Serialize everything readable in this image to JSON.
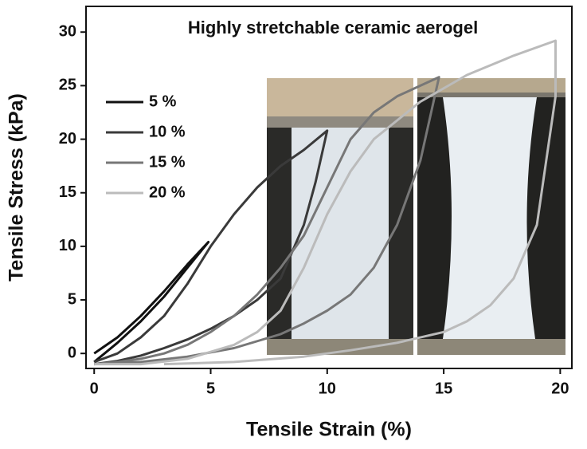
{
  "chart_data": {
    "type": "line",
    "title": "Highly stretchable ceramic aerogel",
    "x_label": "Tensile Strain (%)",
    "y_label": "Tensile Stress (kPa)",
    "xlim": [
      -0.35,
      20.5
    ],
    "ylim": [
      -1.4,
      32.4
    ],
    "xticks": [
      0,
      5,
      10,
      15,
      20
    ],
    "yticks": [
      0,
      5,
      10,
      15,
      20,
      25,
      30
    ],
    "grid": false,
    "legend": "upper left",
    "series": [
      {
        "name": "5 %",
        "color": "#111111",
        "x": [
          0,
          1,
          2,
          3,
          4,
          4.9,
          4,
          3,
          2,
          1,
          0
        ],
        "values": [
          0,
          1.5,
          3.5,
          5.8,
          8.3,
          10.4,
          8,
          5.3,
          3,
          1,
          -0.8
        ]
      },
      {
        "name": "10 %",
        "color": "#3a3a3a",
        "x": [
          0,
          1,
          2,
          3,
          4,
          5,
          6,
          7,
          8,
          9,
          10,
          9.5,
          9,
          8,
          7,
          6,
          5,
          4,
          3,
          2,
          1,
          0
        ],
        "values": [
          -0.8,
          0,
          1.5,
          3.5,
          6.5,
          10,
          13,
          15.5,
          17.5,
          19,
          20.8,
          16,
          12,
          7,
          5,
          3.5,
          2.3,
          1.3,
          0.5,
          -0.2,
          -0.7,
          -1
        ]
      },
      {
        "name": "15 %",
        "color": "#777777",
        "x": [
          0,
          1,
          2,
          3,
          4,
          5,
          6,
          7,
          8,
          9,
          10,
          11,
          12,
          13,
          14,
          14.8,
          14,
          13,
          12,
          11,
          10,
          9,
          8,
          6,
          4,
          2,
          0
        ],
        "values": [
          -1,
          -0.8,
          -0.5,
          0,
          0.8,
          2,
          3.5,
          5.5,
          8,
          11,
          15.5,
          20,
          22.5,
          24,
          25,
          25.8,
          18,
          12,
          8,
          5.5,
          4,
          2.8,
          1.8,
          0.5,
          -0.3,
          -0.8,
          -1
        ]
      },
      {
        "name": "20 %",
        "color": "#bbbbbb",
        "x": [
          0,
          2,
          4,
          6,
          7,
          8,
          9,
          10,
          11,
          12,
          14,
          16,
          18,
          19.8,
          19.8,
          19,
          18,
          17,
          16,
          15,
          13,
          11,
          9,
          6,
          3
        ],
        "values": [
          -1,
          -1,
          -0.5,
          0.8,
          2,
          4,
          8,
          13,
          17,
          20,
          23.5,
          26,
          27.8,
          29.2,
          24,
          12,
          7,
          4.5,
          3,
          2,
          1,
          0.3,
          -0.3,
          -0.8,
          -1
        ]
      }
    ]
  }
}
